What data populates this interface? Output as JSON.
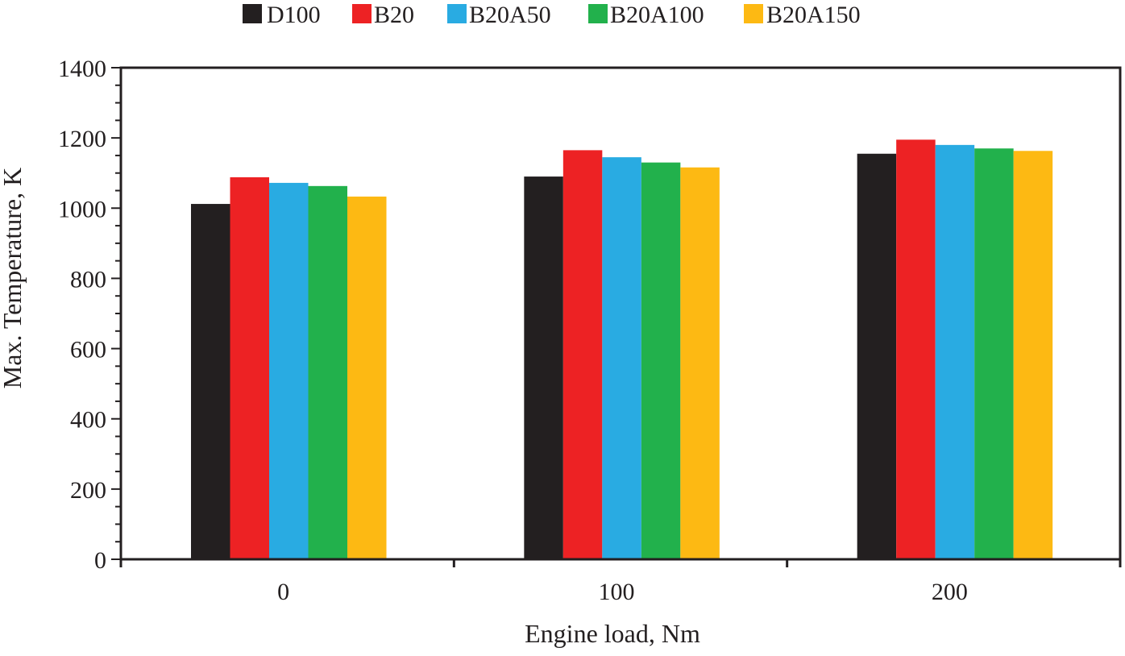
{
  "chart_data": {
    "type": "bar",
    "title": "",
    "xlabel": "Engine load, Nm",
    "ylabel": "Max. Temperature, K",
    "categories": [
      "0",
      "100",
      "200"
    ],
    "ylim": [
      0,
      1400
    ],
    "yticks": [
      0,
      200,
      400,
      600,
      800,
      1000,
      1200,
      1400
    ],
    "grid": false,
    "legend_position": "top",
    "series": [
      {
        "name": "D100",
        "color": "#231f20",
        "values": [
          1012,
          1090,
          1155
        ]
      },
      {
        "name": "B20",
        "color": "#ed2224",
        "values": [
          1088,
          1165,
          1195
        ]
      },
      {
        "name": "B20A50",
        "color": "#29abe2",
        "values": [
          1072,
          1145,
          1180
        ]
      },
      {
        "name": "B20A100",
        "color": "#22b14c",
        "values": [
          1063,
          1130,
          1170
        ]
      },
      {
        "name": "B20A150",
        "color": "#fdb913",
        "values": [
          1033,
          1116,
          1163
        ]
      }
    ]
  }
}
